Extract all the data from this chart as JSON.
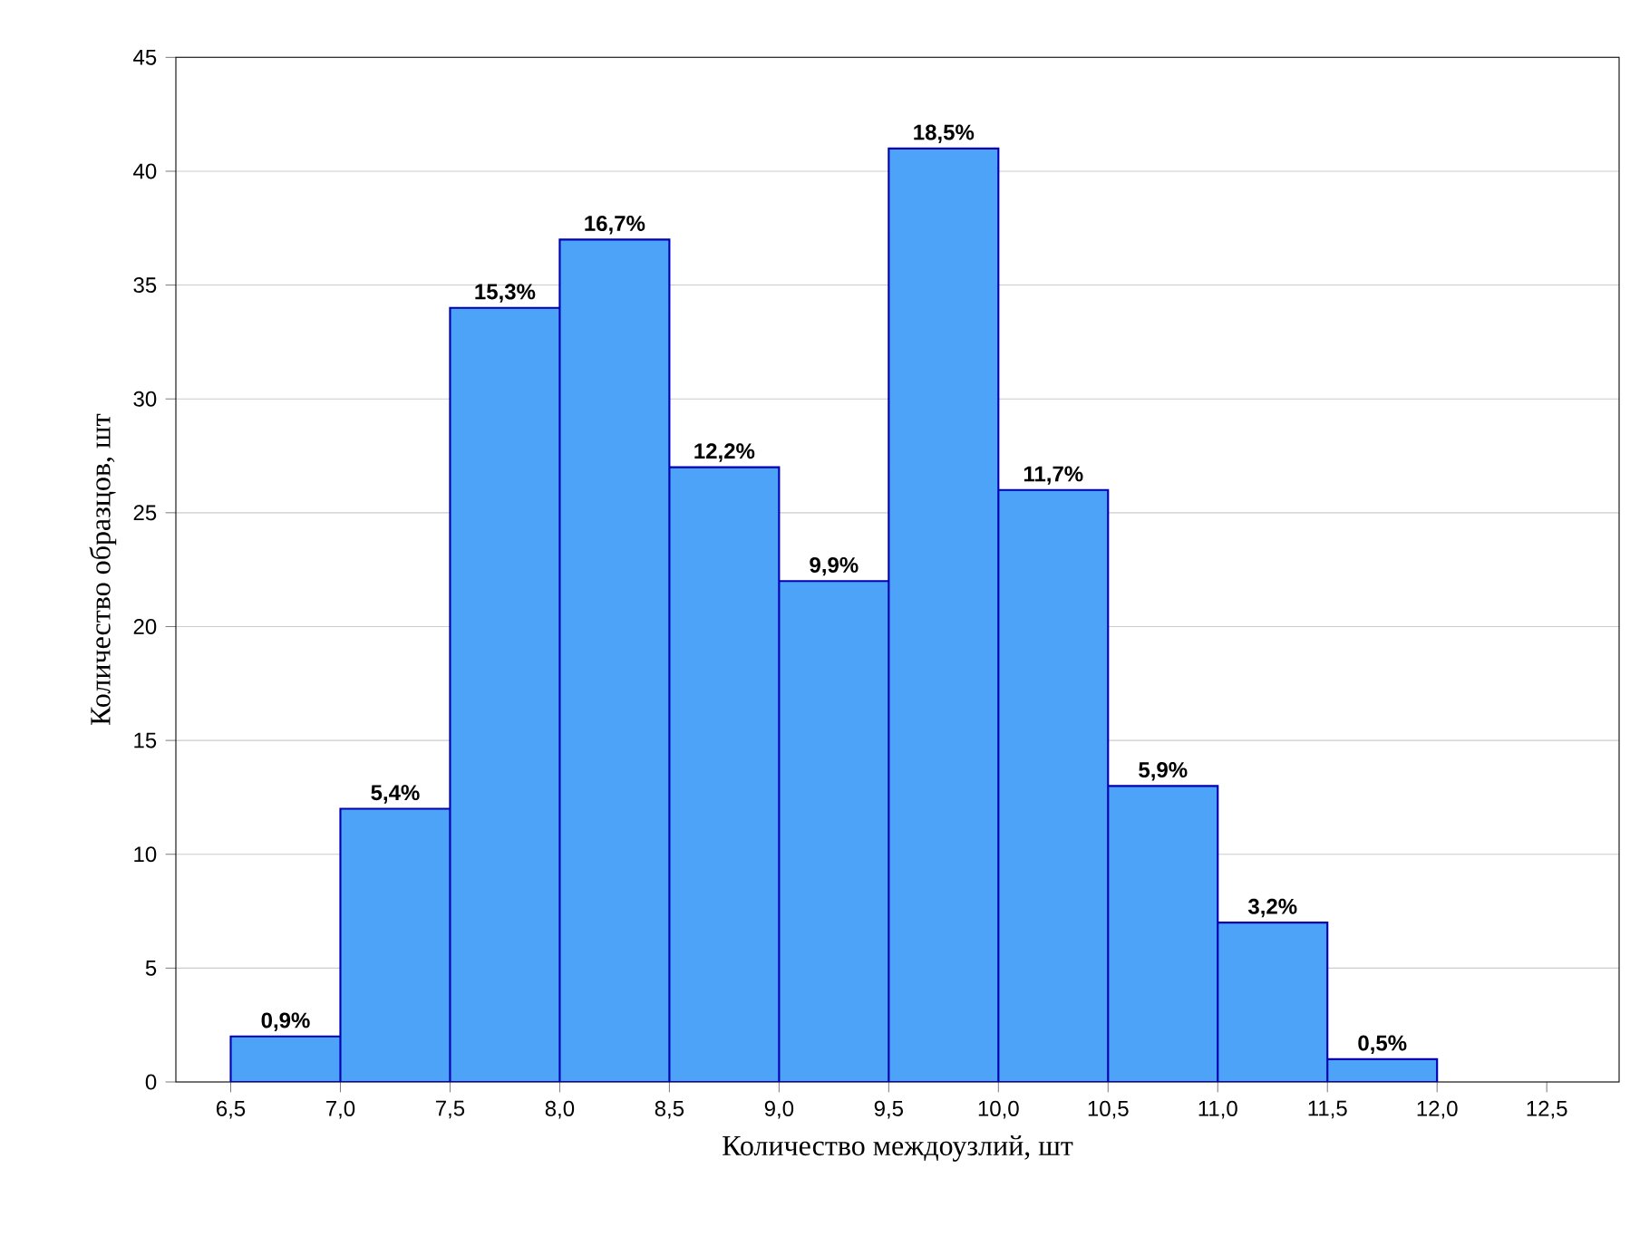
{
  "chart_data": {
    "type": "histogram",
    "xlabel": "Количество междоузлий, шт",
    "ylabel": "Количество образцов, шт",
    "bins": [
      6.5,
      7.0,
      7.5,
      8.0,
      8.5,
      9.0,
      9.5,
      10.0,
      10.5,
      11.0,
      11.5,
      12.0
    ],
    "values": [
      2,
      12,
      34,
      37,
      27,
      22,
      41,
      26,
      13,
      7,
      1
    ],
    "annotations": [
      {
        "text": "0,9%",
        "x": 6.75,
        "y": 2
      },
      {
        "text": "5,4%",
        "x": 7.25,
        "y": 12
      },
      {
        "text": "15,3%",
        "x": 7.75,
        "y": 34
      },
      {
        "text": "16,7%",
        "x": 8.25,
        "y": 37
      },
      {
        "text": "12,2%",
        "x": 8.75,
        "y": 27
      },
      {
        "text": "9,9%",
        "x": 9.25,
        "y": 22
      },
      {
        "text": "18,5%",
        "x": 9.75,
        "y": 41
      },
      {
        "text": "11,7%",
        "x": 10.25,
        "y": 26
      },
      {
        "text": "5,9%",
        "x": 10.75,
        "y": 13
      },
      {
        "text": "3,2%",
        "x": 11.25,
        "y": 7
      },
      {
        "text": "0,5%",
        "x": 11.75,
        "y": 1
      }
    ],
    "color": "#4da3f7",
    "xlim": [
      6.25,
      12.83
    ],
    "xticks": [
      {
        "value": 6.5,
        "label": "6,5"
      },
      {
        "value": 7.0,
        "label": "7,0"
      },
      {
        "value": 7.5,
        "label": "7,5"
      },
      {
        "value": 8.0,
        "label": "8,0"
      },
      {
        "value": 8.5,
        "label": "8,5"
      },
      {
        "value": 9.0,
        "label": "9,0"
      },
      {
        "value": 9.5,
        "label": "9,5"
      },
      {
        "value": 10.0,
        "label": "10,0"
      },
      {
        "value": 10.5,
        "label": "10,5"
      },
      {
        "value": 11.0,
        "label": "11,0"
      },
      {
        "value": 11.5,
        "label": "11,5"
      },
      {
        "value": 12.0,
        "label": "12,0"
      },
      {
        "value": 12.5,
        "label": "12,5"
      }
    ],
    "ylim": [
      0,
      45
    ],
    "yticks": [
      0,
      5,
      10,
      15,
      20,
      25,
      30,
      35,
      40,
      45
    ],
    "grid": "y"
  }
}
